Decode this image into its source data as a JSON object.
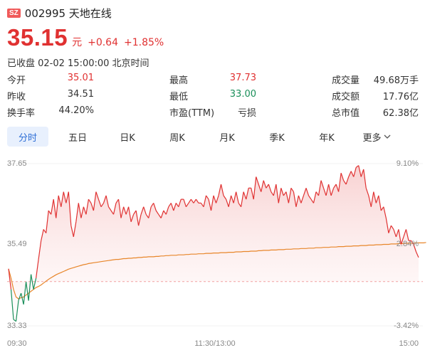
{
  "header": {
    "market_badge": "SZ",
    "code_name": "002995 天地在线"
  },
  "quote": {
    "price": "35.15",
    "unit": "元",
    "change": "+0.64",
    "change_pct": "+1.85%"
  },
  "status_text": "已收盘 02-02 15:00:00 北京时间",
  "stats": [
    {
      "k1": "今开",
      "v1": "35.01",
      "k2": "最高",
      "v2": "37.73",
      "k3": "成交量",
      "v3": "49.68万手"
    },
    {
      "k1": "昨收",
      "v1": "34.51",
      "k2": "最低",
      "v2": "33.00",
      "k3": "成交额",
      "v3": "17.76亿"
    },
    {
      "k1": "换手率",
      "v1": "44.20%",
      "k2": "市盈(TTM)",
      "v2": "亏损",
      "k3": "总市值",
      "v3": "62.38亿"
    }
  ],
  "tabs": [
    "分时",
    "五日",
    "日K",
    "周K",
    "月K",
    "季K",
    "年K",
    "更多"
  ],
  "colors": {
    "up": "#e03131",
    "down": "#1a8f5a",
    "avg": "#e8862a",
    "accent": "#2f6fd6"
  },
  "chart_data": {
    "type": "line",
    "y_left_labels": [
      "37.65",
      "35.49",
      "33.33"
    ],
    "y_right_labels": [
      "9.10%",
      "2.84%",
      "-3.42%"
    ],
    "x_labels": [
      "09:30",
      "11:30/13:00",
      "15:00"
    ],
    "ylim": [
      33.33,
      37.65
    ],
    "prev_close": 34.51,
    "price": [
      34.85,
      34.3,
      33.5,
      33.45,
      34.0,
      34.2,
      33.9,
      34.5,
      34.0,
      34.7,
      34.3,
      34.6,
      35.1,
      35.6,
      35.9,
      35.8,
      36.4,
      36.3,
      36.7,
      36.2,
      36.8,
      36.5,
      36.9,
      36.6,
      36.9,
      36.0,
      35.7,
      36.1,
      36.6,
      36.2,
      36.5,
      36.3,
      36.7,
      36.6,
      36.4,
      36.9,
      36.7,
      36.5,
      36.6,
      36.8,
      36.5,
      36.4,
      36.3,
      36.6,
      36.7,
      36.2,
      36.5,
      36.3,
      36.5,
      36.1,
      36.3,
      36.4,
      36.0,
      36.3,
      36.5,
      36.3,
      36.2,
      36.5,
      36.6,
      36.4,
      36.3,
      36.2,
      36.4,
      36.3,
      36.5,
      36.6,
      36.4,
      36.6,
      36.5,
      36.7,
      36.7,
      36.5,
      36.6,
      36.7,
      36.6,
      36.7,
      36.6,
      36.6,
      36.5,
      36.8,
      36.7,
      36.4,
      36.8,
      36.6,
      36.8,
      37.1,
      36.8,
      36.7,
      36.5,
      36.8,
      36.6,
      36.9,
      36.6,
      36.5,
      36.9,
      36.7,
      37.0,
      37.0,
      36.7,
      37.3,
      37.1,
      36.9,
      37.2,
      37.0,
      37.1,
      36.9,
      36.8,
      37.1,
      36.6,
      37.0,
      36.8,
      36.9,
      36.6,
      37.0,
      36.9,
      36.5,
      36.8,
      36.6,
      36.8,
      37.0,
      36.8,
      36.7,
      36.6,
      36.9,
      36.8,
      37.2,
      37.0,
      36.8,
      37.1,
      36.8,
      37.0,
      37.1,
      36.9,
      37.4,
      37.2,
      37.1,
      37.3,
      37.45,
      37.3,
      37.55,
      37.6,
      37.3,
      37.5,
      37.0,
      36.8,
      36.5,
      36.9,
      36.6,
      36.8,
      36.4,
      36.5,
      36.2,
      35.8,
      36.0,
      35.9,
      35.7,
      35.9,
      35.5,
      35.7,
      35.9,
      35.6,
      35.6,
      35.5,
      35.3,
      35.15
    ],
    "avg": [
      34.85,
      34.6,
      34.3,
      34.1,
      34.05,
      34.08,
      34.1,
      34.15,
      34.2,
      34.25,
      34.3,
      34.35,
      34.38,
      34.42,
      34.47,
      34.52,
      34.57,
      34.61,
      34.65,
      34.69,
      34.72,
      34.75,
      34.78,
      34.81,
      34.84,
      34.86,
      34.88,
      34.9,
      34.92,
      34.94,
      34.96,
      34.97,
      34.99,
      35.0,
      35.01,
      35.02,
      35.03,
      35.04,
      35.05,
      35.06,
      35.07,
      35.08,
      35.09,
      35.1,
      35.1,
      35.11,
      35.12,
      35.12,
      35.13,
      35.13,
      35.14,
      35.14,
      35.15,
      35.15,
      35.16,
      35.16,
      35.17,
      35.17,
      35.17,
      35.18,
      35.18,
      35.19,
      35.19,
      35.2,
      35.2,
      35.21,
      35.21,
      35.21,
      35.22,
      35.22,
      35.22,
      35.23,
      35.23,
      35.24,
      35.24,
      35.24,
      35.25,
      35.25,
      35.25,
      35.26,
      35.26,
      35.26,
      35.27,
      35.27,
      35.27,
      35.28,
      35.28,
      35.28,
      35.29,
      35.29,
      35.29,
      35.3,
      35.3,
      35.3,
      35.31,
      35.31,
      35.31,
      35.32,
      35.32,
      35.32,
      35.33,
      35.33,
      35.34,
      35.34,
      35.34,
      35.35,
      35.35,
      35.35,
      35.36,
      35.36,
      35.36,
      35.37,
      35.37,
      35.37,
      35.38,
      35.38,
      35.38,
      35.39,
      35.39,
      35.39,
      35.4,
      35.4,
      35.4,
      35.41,
      35.41,
      35.41,
      35.42,
      35.42,
      35.42,
      35.43,
      35.43,
      35.43,
      35.44,
      35.44,
      35.44,
      35.45,
      35.45,
      35.45,
      35.46,
      35.46,
      35.46,
      35.47,
      35.47,
      35.47,
      35.48,
      35.48,
      35.48,
      35.49,
      35.49,
      35.49,
      35.5,
      35.5,
      35.5,
      35.51,
      35.51,
      35.51,
      35.52,
      35.52,
      35.52,
      35.53,
      35.53,
      35.53,
      35.53,
      35.54,
      35.54,
      35.54,
      35.54,
      35.55
    ]
  }
}
